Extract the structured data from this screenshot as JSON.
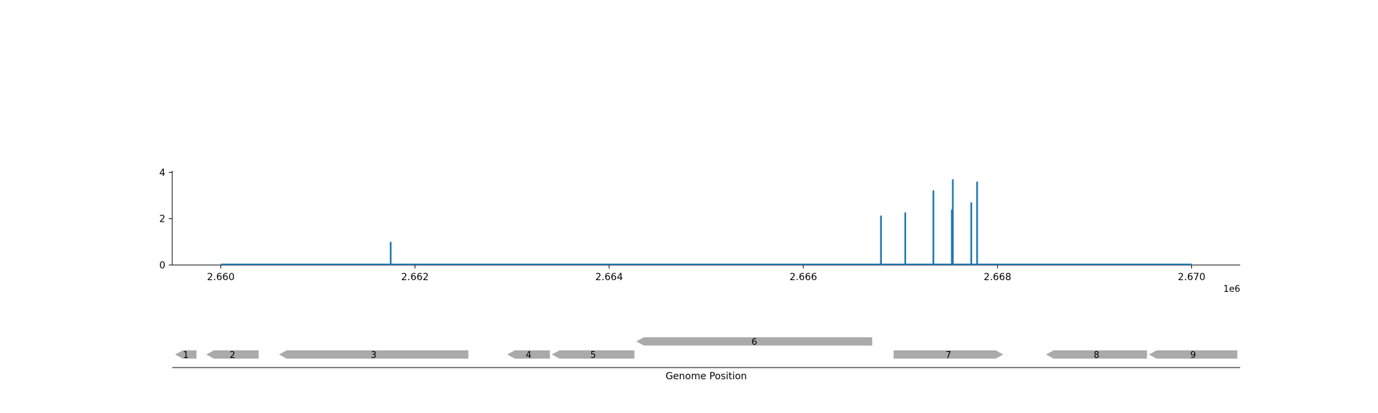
{
  "chart_data": [
    {
      "type": "bar",
      "title": "",
      "xlabel": "",
      "ylabel": "",
      "x_offset_label": "1e6",
      "xlim": [
        2.6595,
        2.6705
      ],
      "ylim": [
        0,
        4.07
      ],
      "x_ticks": [
        2.66,
        2.662,
        2.664,
        2.666,
        2.668,
        2.67
      ],
      "x_tick_labels": [
        "2.660",
        "2.662",
        "2.664",
        "2.666",
        "2.668",
        "2.670"
      ],
      "y_ticks": [
        0,
        2,
        4
      ],
      "y_tick_labels": [
        "0",
        "2",
        "4"
      ],
      "baseline_range": [
        2.66,
        2.67
      ],
      "series_color": "#1f77b4",
      "grid": false,
      "x": [
        2.66175,
        2.6668,
        2.66705,
        2.66734,
        2.66753,
        2.66754,
        2.66773,
        2.66779
      ],
      "values": [
        1.0,
        2.13,
        2.27,
        3.22,
        2.39,
        3.7,
        2.7,
        3.6
      ]
    },
    {
      "type": "gene_track",
      "xlabel": "Genome Position",
      "xlim": [
        2.6595,
        2.6705
      ],
      "feature_color": "#aaaaaa",
      "features": [
        {
          "label": "1",
          "start": 2.65953,
          "end": 2.65975,
          "strand": "-",
          "row": 0
        },
        {
          "label": "2",
          "start": 2.65985,
          "end": 2.66039,
          "strand": "-",
          "row": 0
        },
        {
          "label": "3",
          "start": 2.6606,
          "end": 2.66255,
          "strand": "-",
          "row": 0
        },
        {
          "label": "4",
          "start": 2.66295,
          "end": 2.66339,
          "strand": "-",
          "row": 0
        },
        {
          "label": "5",
          "start": 2.66341,
          "end": 2.66426,
          "strand": "-",
          "row": 0
        },
        {
          "label": "6",
          "start": 2.66428,
          "end": 2.66671,
          "strand": "-",
          "row": 1
        },
        {
          "label": "7",
          "start": 2.66693,
          "end": 2.66806,
          "strand": "+",
          "row": 0
        },
        {
          "label": "8",
          "start": 2.6685,
          "end": 2.66954,
          "strand": "-",
          "row": 0
        },
        {
          "label": "9",
          "start": 2.66956,
          "end": 2.67047,
          "strand": "-",
          "row": 0
        }
      ]
    }
  ]
}
